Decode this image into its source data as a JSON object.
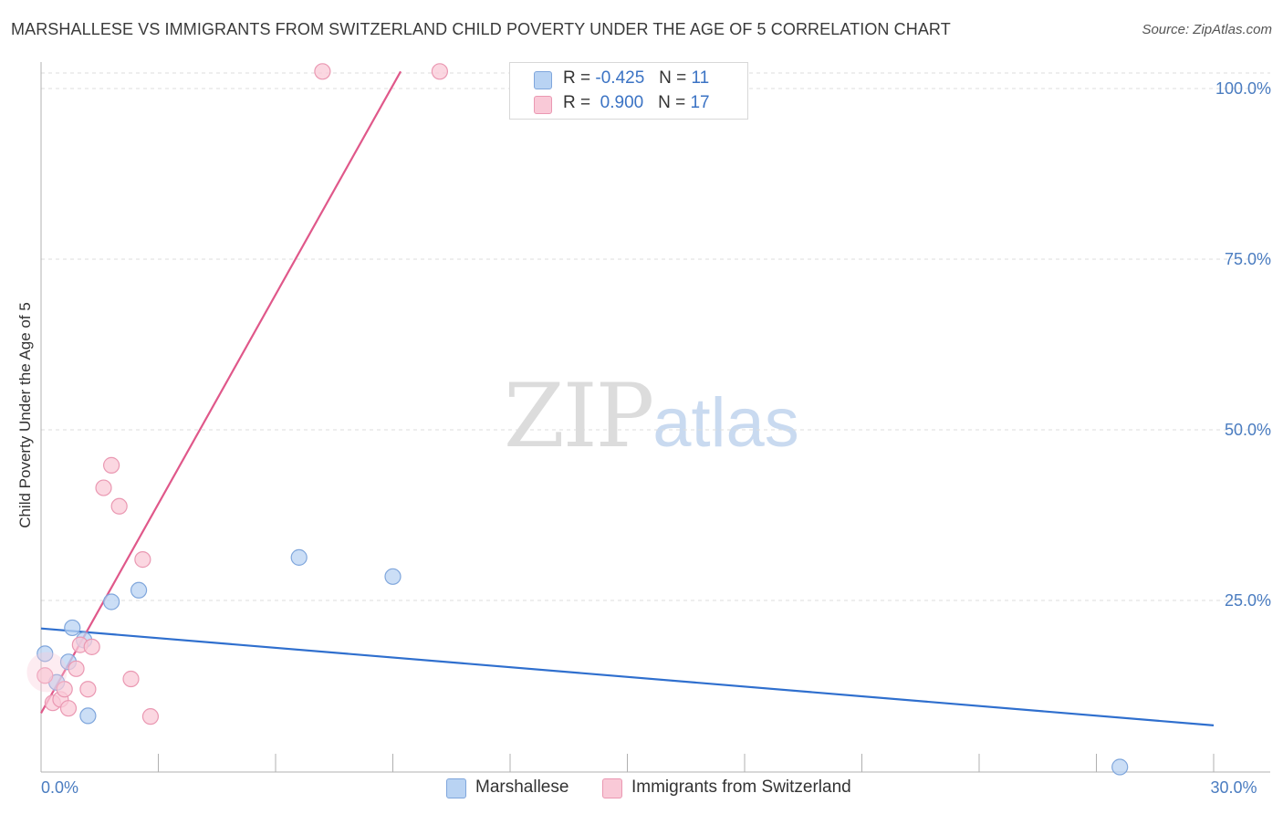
{
  "header": {
    "title": "MARSHALLESE VS IMMIGRANTS FROM SWITZERLAND CHILD POVERTY UNDER THE AGE OF 5 CORRELATION CHART",
    "source": "Source: ZipAtlas.com"
  },
  "watermark": {
    "zip": "ZIP",
    "atlas": "atlas"
  },
  "legend": {
    "marshallese": {
      "r_label": "R =",
      "r_value": "-0.425",
      "n_label": "N =",
      "n_value": "11"
    },
    "swiss": {
      "r_label": "R =",
      "r_value": "0.900",
      "n_label": "N =",
      "n_value": "17"
    }
  },
  "colors": {
    "marshallese_fill": "#b9d3f3",
    "marshallese_stroke": "#7fa6dc",
    "marshallese_line": "#2f6fce",
    "swiss_fill": "#f9c9d7",
    "swiss_stroke": "#ea98b2",
    "swiss_line": "#e0588a",
    "tick_text": "#4a7cc0",
    "grid": "#dddddd"
  },
  "chart_data": {
    "type": "scatter",
    "title": "MARSHALLESE VS IMMIGRANTS FROM SWITZERLAND CHILD POVERTY UNDER THE AGE OF 5 CORRELATION CHART",
    "xlabel": "",
    "ylabel": "Child Poverty Under the Age of 5",
    "xlim": [
      0,
      30
    ],
    "ylim": [
      0,
      100
    ],
    "y_ticks": [
      {
        "value": 25,
        "label": "25.0%"
      },
      {
        "value": 50,
        "label": "50.0%"
      },
      {
        "value": 75,
        "label": "75.0%"
      },
      {
        "value": 100,
        "label": "100.0%"
      }
    ],
    "x_ticks": [
      {
        "value": 0,
        "label": "0.0%"
      },
      {
        "value": 30,
        "label": "30.0%"
      }
    ],
    "x_minor_ticks": [
      0,
      3,
      6,
      9,
      12,
      15,
      18,
      21,
      24,
      27,
      30
    ],
    "series": [
      {
        "name": "Marshallese",
        "color_key": "marshallese",
        "points": [
          {
            "x": 0.1,
            "y": 17.2
          },
          {
            "x": 0.4,
            "y": 13.0
          },
          {
            "x": 0.8,
            "y": 21.0
          },
          {
            "x": 0.7,
            "y": 16.0
          },
          {
            "x": 1.1,
            "y": 19.2
          },
          {
            "x": 1.8,
            "y": 24.8
          },
          {
            "x": 1.2,
            "y": 8.1
          },
          {
            "x": 2.5,
            "y": 26.5
          },
          {
            "x": 6.6,
            "y": 31.3
          },
          {
            "x": 9.0,
            "y": 28.5
          },
          {
            "x": 27.6,
            "y": 0.6
          }
        ],
        "trendline": {
          "x": [
            0,
            30
          ],
          "y": [
            20.9,
            6.7
          ]
        }
      },
      {
        "name": "Immigrants from Switzerland",
        "color_key": "swiss",
        "points": [
          {
            "x": 0.1,
            "y": 14.0
          },
          {
            "x": 0.3,
            "y": 10.0
          },
          {
            "x": 0.5,
            "y": 10.5
          },
          {
            "x": 0.6,
            "y": 12.0
          },
          {
            "x": 0.7,
            "y": 9.2
          },
          {
            "x": 0.9,
            "y": 15.0
          },
          {
            "x": 1.0,
            "y": 18.5
          },
          {
            "x": 1.2,
            "y": 12.0
          },
          {
            "x": 1.3,
            "y": 18.2
          },
          {
            "x": 1.6,
            "y": 41.5
          },
          {
            "x": 1.8,
            "y": 44.8
          },
          {
            "x": 2.0,
            "y": 38.8
          },
          {
            "x": 2.3,
            "y": 13.5
          },
          {
            "x": 2.6,
            "y": 31.0
          },
          {
            "x": 2.8,
            "y": 8.0
          },
          {
            "x": 7.2,
            "y": 102.5
          },
          {
            "x": 10.2,
            "y": 102.5
          }
        ],
        "trendline": {
          "x": [
            0,
            9.2
          ],
          "y": [
            8.5,
            102.5
          ]
        }
      }
    ],
    "legend": [
      "Marshallese",
      "Immigrants from Switzerland"
    ],
    "grid": true
  }
}
